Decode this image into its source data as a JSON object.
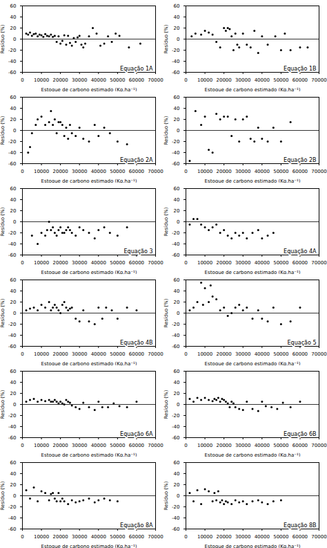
{
  "chart_data": [
    {
      "type": "scatter",
      "annotation": "Equação 1A",
      "xlabel": "Estoque de carbono estimado (Kg.ha⁻¹)",
      "ylabel": "Resíduo (%)",
      "color": "black",
      "xlim": [
        0,
        70000
      ],
      "xticks": [
        0,
        10000,
        20000,
        30000,
        40000,
        50000,
        60000,
        70000
      ],
      "ylim": [
        -60,
        60
      ],
      "yticks": [
        -60,
        -40,
        -20,
        0,
        20,
        40,
        60
      ],
      "x": [
        2000,
        3000,
        4000,
        5000,
        6000,
        7000,
        8000,
        9000,
        10000,
        11000,
        12000,
        13000,
        14000,
        15000,
        16000,
        17000,
        18000,
        19000,
        20000,
        21000,
        22000,
        23000,
        24000,
        25000,
        26000,
        27000,
        28000,
        29000,
        30000,
        31000,
        32000,
        33000,
        35000,
        37000,
        39000,
        41000,
        43000,
        45000,
        47000,
        49000,
        51000,
        56000,
        62000
      ],
      "values": [
        10,
        8,
        12,
        6,
        9,
        10,
        5,
        8,
        7,
        4,
        9,
        6,
        5,
        8,
        4,
        6,
        -5,
        5,
        -8,
        -3,
        7,
        -10,
        6,
        -7,
        -12,
        2,
        -5,
        3,
        6,
        -10,
        -15,
        -8,
        5,
        20,
        10,
        -12,
        -8,
        5,
        -5,
        10,
        6,
        -15,
        -8
      ]
    },
    {
      "type": "scatter",
      "annotation": "Equação 1B",
      "xlabel": "Estoque de carbono estimado (Kg.ha⁻¹)",
      "ylabel": "Resíduo (%)",
      "color": "black",
      "xlim": [
        0,
        70000
      ],
      "xticks": [
        0,
        10000,
        20000,
        30000,
        40000,
        50000,
        60000,
        70000
      ],
      "ylim": [
        -60,
        60
      ],
      "yticks": [
        -60,
        -40,
        -20,
        0,
        20,
        40,
        60
      ],
      "x": [
        3000,
        5000,
        8000,
        10000,
        12000,
        14000,
        16000,
        18000,
        20000,
        21000,
        22000,
        23000,
        24000,
        25000,
        26000,
        27000,
        28000,
        30000,
        32000,
        34000,
        36000,
        38000,
        40000,
        43000,
        47000,
        50000,
        52000,
        55000,
        60000,
        64000
      ],
      "values": [
        5,
        10,
        8,
        15,
        12,
        8,
        -5,
        -15,
        20,
        15,
        20,
        18,
        5,
        -20,
        10,
        -10,
        -15,
        10,
        -10,
        -15,
        15,
        -25,
        5,
        -10,
        5,
        -20,
        10,
        -20,
        -15,
        -15
      ]
    },
    {
      "type": "scatter",
      "annotation": "Equação 2A",
      "xlabel": "Estoque de carbono estimado (Kg.ha⁻¹)",
      "ylabel": "Resíduo (%)",
      "color": "black",
      "xlim": [
        0,
        70000
      ],
      "xticks": [
        0,
        10000,
        20000,
        30000,
        40000,
        50000,
        60000,
        70000
      ],
      "ylim": [
        -60,
        60
      ],
      "yticks": [
        -60,
        -40,
        -20,
        0,
        20,
        40,
        60
      ],
      "x": [
        3000,
        4000,
        5000,
        7000,
        8000,
        10000,
        12000,
        14000,
        15000,
        16000,
        17000,
        18000,
        19000,
        20000,
        21000,
        22000,
        23000,
        24000,
        25000,
        26000,
        28000,
        30000,
        32000,
        35000,
        38000,
        40000,
        43000,
        46000,
        50000,
        55000
      ],
      "values": [
        -40,
        -30,
        -5,
        10,
        20,
        25,
        10,
        15,
        35,
        10,
        20,
        -5,
        15,
        15,
        10,
        -10,
        5,
        -15,
        10,
        -5,
        -10,
        5,
        -15,
        -20,
        10,
        -10,
        5,
        -5,
        -20,
        -25
      ]
    },
    {
      "type": "scatter",
      "annotation": "Equação 2B",
      "xlabel": "Estoque de carbono estimado (Kg.ha⁻¹)",
      "ylabel": "Resíduo (%)",
      "color": "black",
      "xlim": [
        0,
        70000
      ],
      "xticks": [
        0,
        10000,
        20000,
        30000,
        40000,
        50000,
        60000,
        70000
      ],
      "ylim": [
        -60,
        60
      ],
      "yticks": [
        -60,
        -40,
        -20,
        0,
        20,
        40,
        60
      ],
      "x": [
        2000,
        5000,
        8000,
        10000,
        12000,
        14000,
        16000,
        18000,
        20000,
        22000,
        24000,
        26000,
        28000,
        30000,
        32000,
        34000,
        36000,
        38000,
        40000,
        43000,
        46000,
        50000,
        55000
      ],
      "values": [
        -55,
        35,
        10,
        25,
        -35,
        -40,
        30,
        20,
        25,
        25,
        -10,
        20,
        -20,
        20,
        25,
        -15,
        -20,
        5,
        -15,
        -20,
        5,
        -20,
        15
      ]
    },
    {
      "type": "scatter",
      "annotation": "Equação 3",
      "xlabel": "Estoque de carbono estimado (Kg.ha⁻¹)",
      "ylabel": "Resíduo (%)",
      "color": "black",
      "xlim": [
        0,
        70000
      ],
      "xticks": [
        0,
        10000,
        20000,
        30000,
        40000,
        50000,
        60000,
        70000
      ],
      "ylim": [
        -60,
        60
      ],
      "yticks": [
        -60,
        -40,
        -20,
        0,
        20,
        40,
        60
      ],
      "x": [
        5000,
        8000,
        10000,
        12000,
        13000,
        14000,
        15000,
        16000,
        17000,
        18000,
        19000,
        20000,
        21000,
        22000,
        23000,
        24000,
        25000,
        26000,
        28000,
        30000,
        32000,
        35000,
        38000,
        40000,
        43000,
        46000,
        50000,
        55000
      ],
      "values": [
        -25,
        -40,
        -20,
        -25,
        -15,
        0,
        -15,
        -10,
        -20,
        -25,
        -15,
        -10,
        -20,
        -20,
        -15,
        -10,
        -15,
        -20,
        -25,
        -10,
        -15,
        -20,
        -30,
        -15,
        -10,
        -20,
        -25,
        -10
      ]
    },
    {
      "type": "scatter",
      "annotation": "Equação 4A",
      "xlabel": "Estoque de carbono estimado (Kg.ha⁻¹)",
      "ylabel": "Resíduo (%)",
      "color": "black",
      "xlim": [
        0,
        70000
      ],
      "xticks": [
        0,
        10000,
        20000,
        30000,
        40000,
        50000,
        60000,
        70000
      ],
      "ylim": [
        -60,
        60
      ],
      "yticks": [
        -60,
        -40,
        -20,
        0,
        20,
        40,
        60
      ],
      "x": [
        2000,
        4000,
        6000,
        8000,
        10000,
        12000,
        14000,
        16000,
        18000,
        20000,
        22000,
        24000,
        26000,
        28000,
        30000,
        32000,
        35000,
        38000,
        40000,
        43000,
        46000
      ],
      "values": [
        -5,
        5,
        5,
        -5,
        -10,
        -15,
        -10,
        -5,
        -20,
        -15,
        -25,
        -30,
        -20,
        -25,
        -20,
        -30,
        -20,
        -15,
        -30,
        -25,
        -20
      ]
    },
    {
      "type": "scatter",
      "annotation": "Equação 4B",
      "xlabel": "Estoque de carbono estimado (Kg.ha⁻¹)",
      "ylabel": "Resíduo (%)",
      "color": "black",
      "xlim": [
        0,
        70000
      ],
      "xticks": [
        0,
        10000,
        20000,
        30000,
        40000,
        50000,
        60000,
        70000
      ],
      "ylim": [
        -60,
        60
      ],
      "yticks": [
        -60,
        -40,
        -20,
        0,
        20,
        40,
        60
      ],
      "x": [
        2000,
        4000,
        6000,
        8000,
        10000,
        12000,
        14000,
        15000,
        16000,
        17000,
        18000,
        19000,
        20000,
        21000,
        22000,
        23000,
        24000,
        25000,
        26000,
        28000,
        30000,
        32000,
        35000,
        38000,
        40000,
        42000,
        44000,
        47000,
        50000,
        55000,
        60000
      ],
      "values": [
        5,
        8,
        10,
        5,
        15,
        10,
        20,
        5,
        10,
        15,
        10,
        5,
        0,
        15,
        20,
        10,
        5,
        8,
        10,
        -10,
        -15,
        5,
        -15,
        -20,
        10,
        -10,
        10,
        5,
        -10,
        10,
        5
      ]
    },
    {
      "type": "scatter",
      "annotation": "Equação 5",
      "xlabel": "Estoque de carbono estimado (Kg.ha⁻¹)",
      "ylabel": "Resíduo (%)",
      "color": "black",
      "xlim": [
        0,
        70000
      ],
      "xticks": [
        0,
        10000,
        20000,
        30000,
        40000,
        50000,
        60000,
        70000
      ],
      "ylim": [
        -60,
        60
      ],
      "yticks": [
        -60,
        -40,
        -20,
        0,
        20,
        40,
        60
      ],
      "x": [
        2000,
        4000,
        6000,
        8000,
        9000,
        10000,
        12000,
        13000,
        14000,
        16000,
        18000,
        20000,
        22000,
        24000,
        26000,
        28000,
        30000,
        32000,
        35000,
        38000,
        40000,
        43000,
        46000,
        50000,
        55000,
        60000
      ],
      "values": [
        5,
        10,
        20,
        55,
        15,
        45,
        20,
        50,
        30,
        25,
        5,
        10,
        -5,
        0,
        10,
        15,
        5,
        10,
        -10,
        5,
        -10,
        -15,
        10,
        -20,
        -15,
        10
      ]
    },
    {
      "type": "scatter",
      "annotation": "Equação 6A",
      "xlabel": "Estoque de carbono estimado (Kg.ha⁻¹)",
      "ylabel": "Resíduo (%)",
      "color": "black",
      "xlim": [
        0,
        70000
      ],
      "xticks": [
        0,
        10000,
        20000,
        30000,
        40000,
        50000,
        60000,
        70000
      ],
      "ylim": [
        -60,
        60
      ],
      "yticks": [
        -60,
        -40,
        -20,
        0,
        20,
        40,
        60
      ],
      "x": [
        2000,
        4000,
        6000,
        8000,
        10000,
        12000,
        14000,
        15000,
        16000,
        17000,
        18000,
        19000,
        20000,
        21000,
        22000,
        23000,
        24000,
        25000,
        26000,
        28000,
        30000,
        32000,
        35000,
        38000,
        40000,
        42000,
        45000,
        48000,
        51000,
        55000,
        60000
      ],
      "values": [
        5,
        8,
        10,
        5,
        8,
        6,
        8,
        5,
        5,
        8,
        5,
        2,
        5,
        2,
        0,
        8,
        5,
        3,
        -2,
        -5,
        -8,
        3,
        -5,
        -10,
        5,
        -5,
        -5,
        2,
        -3,
        -5,
        5
      ]
    },
    {
      "type": "scatter",
      "annotation": "Equação 6B",
      "xlabel": "Estoque de carbono estimado (Kg.ha⁻¹)",
      "ylabel": "Resíduo (%)",
      "color": "black",
      "xlim": [
        0,
        70000
      ],
      "xticks": [
        0,
        10000,
        20000,
        30000,
        40000,
        50000,
        60000,
        70000
      ],
      "ylim": [
        -60,
        60
      ],
      "yticks": [
        -60,
        -40,
        -20,
        0,
        20,
        40,
        60
      ],
      "x": [
        2000,
        4000,
        6000,
        8000,
        10000,
        12000,
        14000,
        15000,
        16000,
        17000,
        18000,
        19000,
        20000,
        21000,
        22000,
        23000,
        24000,
        25000,
        26000,
        28000,
        30000,
        32000,
        35000,
        38000,
        40000,
        42000,
        45000,
        48000,
        51000,
        55000,
        60000
      ],
      "values": [
        10,
        5,
        12,
        8,
        12,
        8,
        6,
        10,
        8,
        12,
        5,
        10,
        8,
        5,
        2,
        -5,
        5,
        2,
        -5,
        -8,
        -10,
        5,
        -8,
        -12,
        5,
        -3,
        -5,
        -8,
        3,
        -5,
        5
      ]
    },
    {
      "type": "scatter",
      "annotation": "Equação 8A",
      "xlabel": "Estoque de carbono estimado (Kg.ha⁻¹)",
      "ylabel": "Resíduo (%)",
      "color": "black",
      "xlim": [
        0,
        70000
      ],
      "xticks": [
        0,
        10000,
        20000,
        30000,
        40000,
        50000,
        60000,
        70000
      ],
      "ylim": [
        -60,
        60
      ],
      "yticks": [
        -60,
        -40,
        -20,
        0,
        20,
        40,
        60
      ],
      "x": [
        2000,
        4000,
        6000,
        8000,
        10000,
        12000,
        14000,
        15000,
        16000,
        17000,
        18000,
        19000,
        20000,
        21000,
        22000,
        24000,
        26000,
        28000,
        30000,
        32000,
        35000,
        38000,
        40000,
        43000,
        46000,
        50000
      ],
      "values": [
        10,
        -5,
        15,
        -10,
        8,
        5,
        -8,
        3,
        5,
        -5,
        -10,
        5,
        -10,
        -5,
        -10,
        -15,
        -8,
        -12,
        -10,
        -8,
        -5,
        -12,
        -8,
        -5,
        -8,
        -10
      ]
    },
    {
      "type": "scatter",
      "annotation": "Equação 8B",
      "xlabel": "Estoque de carbono estimado (Kg.ha⁻¹)",
      "ylabel": "Resíduo (%)",
      "color": "black",
      "xlim": [
        0,
        70000
      ],
      "xticks": [
        0,
        10000,
        20000,
        30000,
        40000,
        50000,
        60000,
        70000
      ],
      "ylim": [
        -60,
        60
      ],
      "yticks": [
        -60,
        -40,
        -20,
        0,
        20,
        40,
        60
      ],
      "x": [
        2000,
        4000,
        6000,
        8000,
        10000,
        12000,
        14000,
        15000,
        16000,
        17000,
        18000,
        19000,
        20000,
        21000,
        22000,
        24000,
        26000,
        28000,
        30000,
        32000,
        35000,
        38000,
        40000,
        43000,
        46000,
        50000
      ],
      "values": [
        5,
        -10,
        10,
        -15,
        12,
        8,
        -10,
        5,
        -8,
        8,
        -12,
        -8,
        -15,
        -10,
        -12,
        -15,
        -8,
        -12,
        -10,
        -15,
        -10,
        -8,
        -12,
        -15,
        -10,
        -8
      ]
    }
  ]
}
